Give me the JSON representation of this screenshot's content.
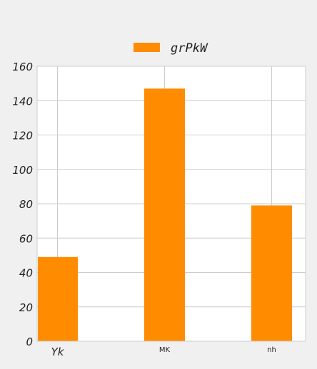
{
  "chart_data": {
    "type": "bar",
    "categories": [
      "Yk",
      "MK",
      "nh"
    ],
    "series": [
      {
        "name": "grPkW",
        "values": [
          49,
          147,
          79
        ],
        "color": "#ff8c00"
      }
    ],
    "ylim": [
      0,
      160
    ],
    "yticks": [
      0,
      20,
      40,
      60,
      80,
      100,
      120,
      140,
      160
    ],
    "grid": true,
    "legend_position": "top-center",
    "background_color": "#f0f0f0",
    "plot_background_color": "#ffffff",
    "grid_color": "#cccccc"
  }
}
